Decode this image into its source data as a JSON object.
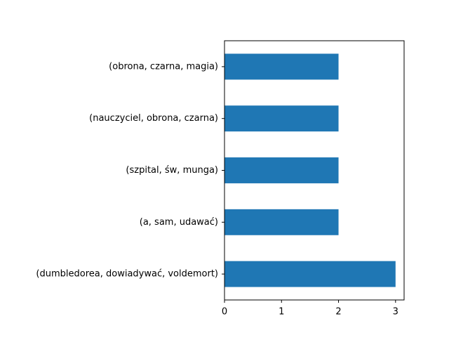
{
  "chart_data": {
    "type": "bar",
    "orientation": "horizontal",
    "categories": [
      "(dumbledorea, dowiadywać, voldemort)",
      "(a, sam, udawać)",
      "(szpital, św, munga)",
      "(nauczyciel, obrona, czarna)",
      "(obrona, czarna, magia)"
    ],
    "values": [
      3,
      2,
      2,
      2,
      2
    ],
    "xlim": [
      0,
      3.15
    ],
    "xticks": [
      0,
      1,
      2,
      3
    ],
    "title": "",
    "xlabel": "",
    "ylabel": "",
    "grid": false,
    "bar_color": "#1f77b4"
  }
}
